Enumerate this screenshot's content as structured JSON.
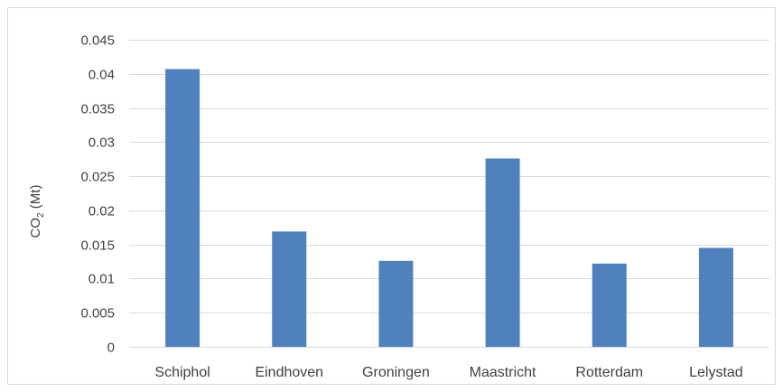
{
  "chart_data": {
    "type": "bar",
    "categories": [
      "Schiphol",
      "Eindhoven",
      "Groningen",
      "Maastricht",
      "Rotterdam",
      "Lelystad"
    ],
    "values": [
      0.0407,
      0.0169,
      0.0126,
      0.0276,
      0.0122,
      0.0145
    ],
    "title": "",
    "xlabel": "",
    "ylabel": {
      "main": "CO",
      "subscript": "2",
      "suffix": " (Mt)"
    },
    "ylim": [
      0,
      0.045
    ],
    "yticks": [
      "0",
      "0.005",
      "0.01",
      "0.015",
      "0.02",
      "0.025",
      "0.03",
      "0.035",
      "0.04",
      "0.045"
    ],
    "grid": true,
    "legend": "none",
    "colors": {
      "bar": "#4f81bd",
      "grid": "#d9d9d9",
      "axis": "#d9d9d9",
      "text": "#404040"
    }
  }
}
